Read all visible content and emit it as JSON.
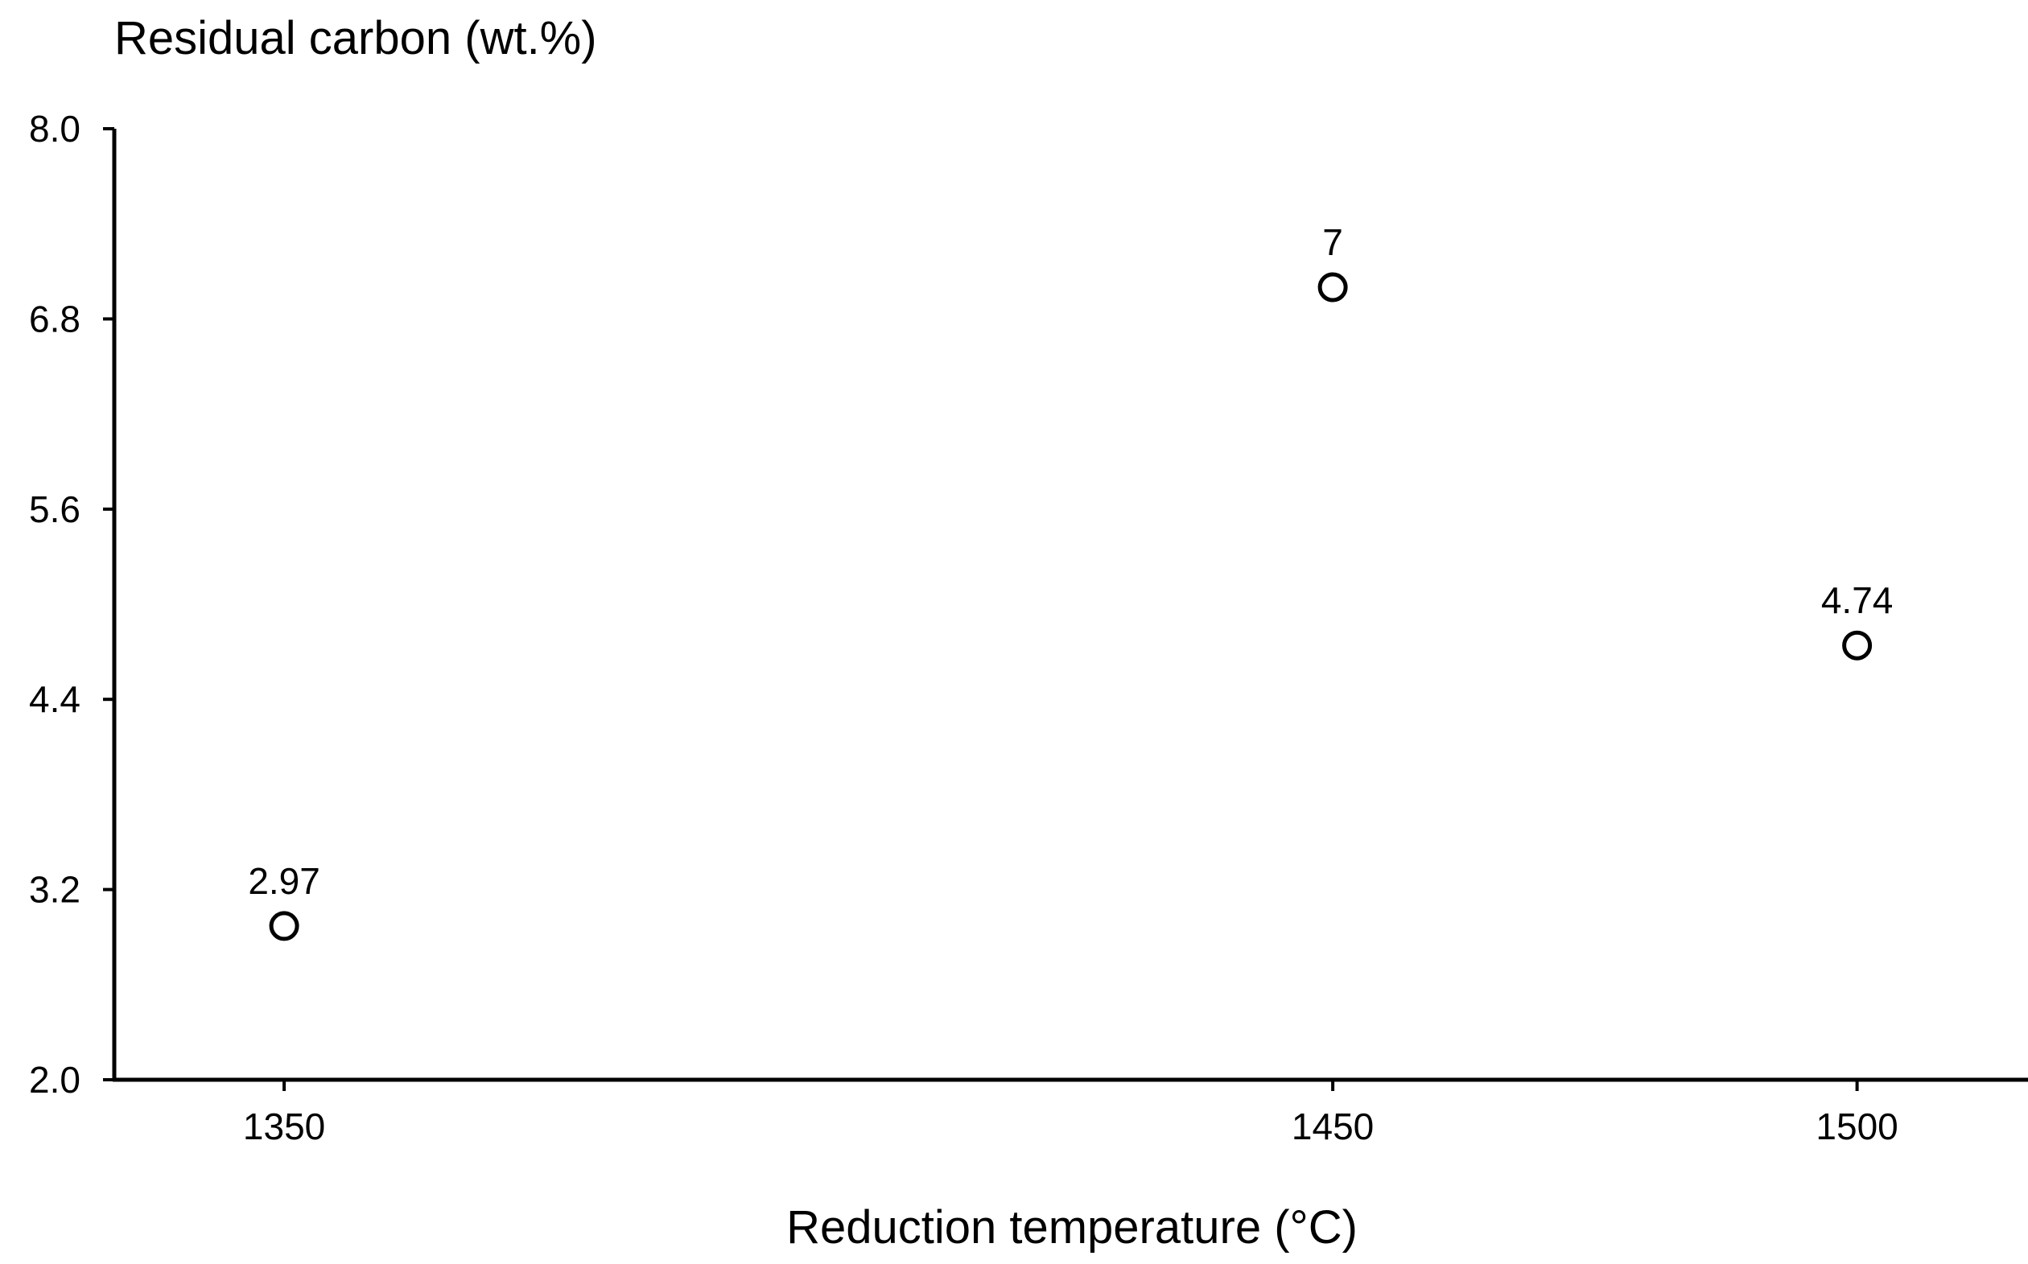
{
  "chart_data": {
    "type": "scatter",
    "title": "",
    "xlabel": "Reduction temperature (°C)",
    "ylabel": "Residual carbon (wt.%)",
    "x": [
      1350,
      1450,
      1500
    ],
    "y": [
      2.97,
      7,
      4.74
    ],
    "point_labels": [
      "2.97",
      "7",
      "4.74"
    ],
    "x_ticks": [
      1350,
      1450,
      1500
    ],
    "x_tick_labels": [
      "1350",
      "1450",
      "1500"
    ],
    "y_ticks": [
      2.0,
      3.2,
      4.4,
      5.6,
      6.8,
      8.0
    ],
    "y_tick_labels": [
      "2.0",
      "3.2",
      "4.4",
      "5.6",
      "6.8",
      "8.0"
    ],
    "xlim": [
      1333.8,
      1516.3
    ],
    "ylim": [
      2.0,
      8.0
    ],
    "grid": false,
    "legend": "none",
    "marker": "open-circle",
    "colors": {
      "marker_edge": "#000000",
      "marker_fill": "#ffffff",
      "axis": "#000000"
    }
  }
}
